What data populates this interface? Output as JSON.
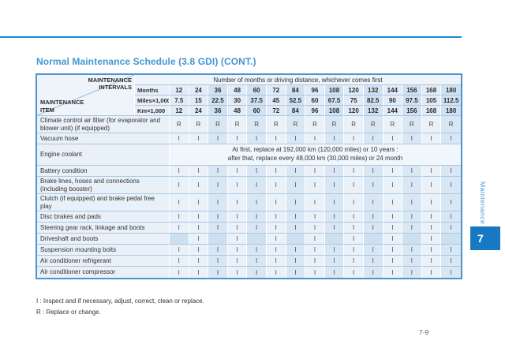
{
  "page": {
    "title": "Normal Maintenance Schedule (3.8 GDI) (CONT.)",
    "page_number": "7-9",
    "notes": [
      "I  : Inspect and if necessary, adjust, correct, clean or replace.",
      "R : Replace or change."
    ]
  },
  "sidebar": {
    "section_label": "Maintenance",
    "chapter_tab": "7"
  },
  "table": {
    "corner": {
      "top_label": "MAINTENANCE\nINTERVALS",
      "bottom_label": "MAINTENANCE\nITEM"
    },
    "span_header": "Number of months or driving distance, whichever comes first",
    "interval_rows": [
      {
        "label": "Months",
        "values": [
          "12",
          "24",
          "36",
          "48",
          "60",
          "72",
          "84",
          "96",
          "108",
          "120",
          "132",
          "144",
          "156",
          "168",
          "180"
        ]
      },
      {
        "label": "Miles×1,000",
        "values": [
          "7.5",
          "15",
          "22.5",
          "30",
          "37.5",
          "45",
          "52.5",
          "60",
          "67.5",
          "75",
          "82.5",
          "90",
          "97.5",
          "105",
          "112.5"
        ]
      },
      {
        "label": "Km×1,000",
        "values": [
          "12",
          "24",
          "36",
          "48",
          "60",
          "72",
          "84",
          "96",
          "108",
          "120",
          "132",
          "144",
          "156",
          "168",
          "180"
        ]
      }
    ],
    "items": [
      {
        "name": "Climate control air filter (for evaporator and blower unit) (if equipped)",
        "height": "tall",
        "marks": [
          "R",
          "R",
          "R",
          "R",
          "R",
          "R",
          "R",
          "R",
          "R",
          "R",
          "R",
          "R",
          "R",
          "R",
          "R"
        ]
      },
      {
        "name": "Vacuum hose",
        "height": "single",
        "marks": [
          "I",
          "I",
          "I",
          "I",
          "I",
          "I",
          "I",
          "I",
          "I",
          "I",
          "I",
          "I",
          "I",
          "I",
          "I"
        ]
      },
      {
        "name": "Engine coolant",
        "height": "coolant",
        "span_text": [
          "At first, replace at 192,000 km (120,000 miles) or 10 years :",
          "after that, replace every 48,000 km (30,000 miles) or 24 month"
        ]
      },
      {
        "name": "Battery condition",
        "height": "single",
        "marks": [
          "I",
          "I",
          "I",
          "I",
          "I",
          "I",
          "I",
          "I",
          "I",
          "I",
          "I",
          "I",
          "I",
          "I",
          "I"
        ]
      },
      {
        "name": "Brake lines, hoses and connections (including booster)",
        "height": "tall",
        "marks": [
          "I",
          "I",
          "I",
          "I",
          "I",
          "I",
          "I",
          "I",
          "I",
          "I",
          "I",
          "I",
          "I",
          "I",
          "I"
        ]
      },
      {
        "name": "Clutch (if equipped) and brake pedal free play",
        "height": "tall",
        "marks": [
          "I",
          "I",
          "I",
          "I",
          "I",
          "I",
          "I",
          "I",
          "I",
          "I",
          "I",
          "I",
          "I",
          "I",
          "I"
        ]
      },
      {
        "name": "Disc brakes and pads",
        "height": "single",
        "marks": [
          "I",
          "I",
          "I",
          "I",
          "I",
          "I",
          "I",
          "I",
          "I",
          "I",
          "I",
          "I",
          "I",
          "I",
          "I"
        ]
      },
      {
        "name": "Steering gear rack, linkage and boots",
        "height": "single",
        "marks": [
          "I",
          "I",
          "I",
          "I",
          "I",
          "I",
          "I",
          "I",
          "I",
          "I",
          "I",
          "I",
          "I",
          "I",
          "I"
        ]
      },
      {
        "name": "Driveshaft and boots",
        "height": "single",
        "marks": [
          "",
          "I",
          "",
          "I",
          "",
          "I",
          "",
          "I",
          "",
          "I",
          "",
          "I",
          "",
          "I",
          ""
        ]
      },
      {
        "name": "Suspension mounting bolts",
        "height": "single",
        "marks": [
          "I",
          "I",
          "I",
          "I",
          "I",
          "I",
          "I",
          "I",
          "I",
          "I",
          "I",
          "I",
          "I",
          "I",
          "I"
        ]
      },
      {
        "name": "Air conditioner refrigerant",
        "height": "single",
        "marks": [
          "I",
          "I",
          "I",
          "I",
          "I",
          "I",
          "I",
          "I",
          "I",
          "I",
          "I",
          "I",
          "I",
          "I",
          "I"
        ]
      },
      {
        "name": "Air conditioner compressor",
        "height": "single",
        "marks": [
          "I",
          "I",
          "I",
          "I",
          "I",
          "I",
          "I",
          "I",
          "I",
          "I",
          "I",
          "I",
          "I",
          "I",
          "I"
        ]
      }
    ]
  },
  "colors": {
    "accent_blue": "#4296d3",
    "top_rule_blue": "#1f88d3",
    "chapter_tab_blue": "#1879c3",
    "table_border": "#4d94cc",
    "row_line": "#a7c9e6",
    "cell_light": "#eaf1f9",
    "cell_dark": "#d9e6f3",
    "cell_empty_shaded": "#cde0f0",
    "text_dark": "#333333"
  }
}
